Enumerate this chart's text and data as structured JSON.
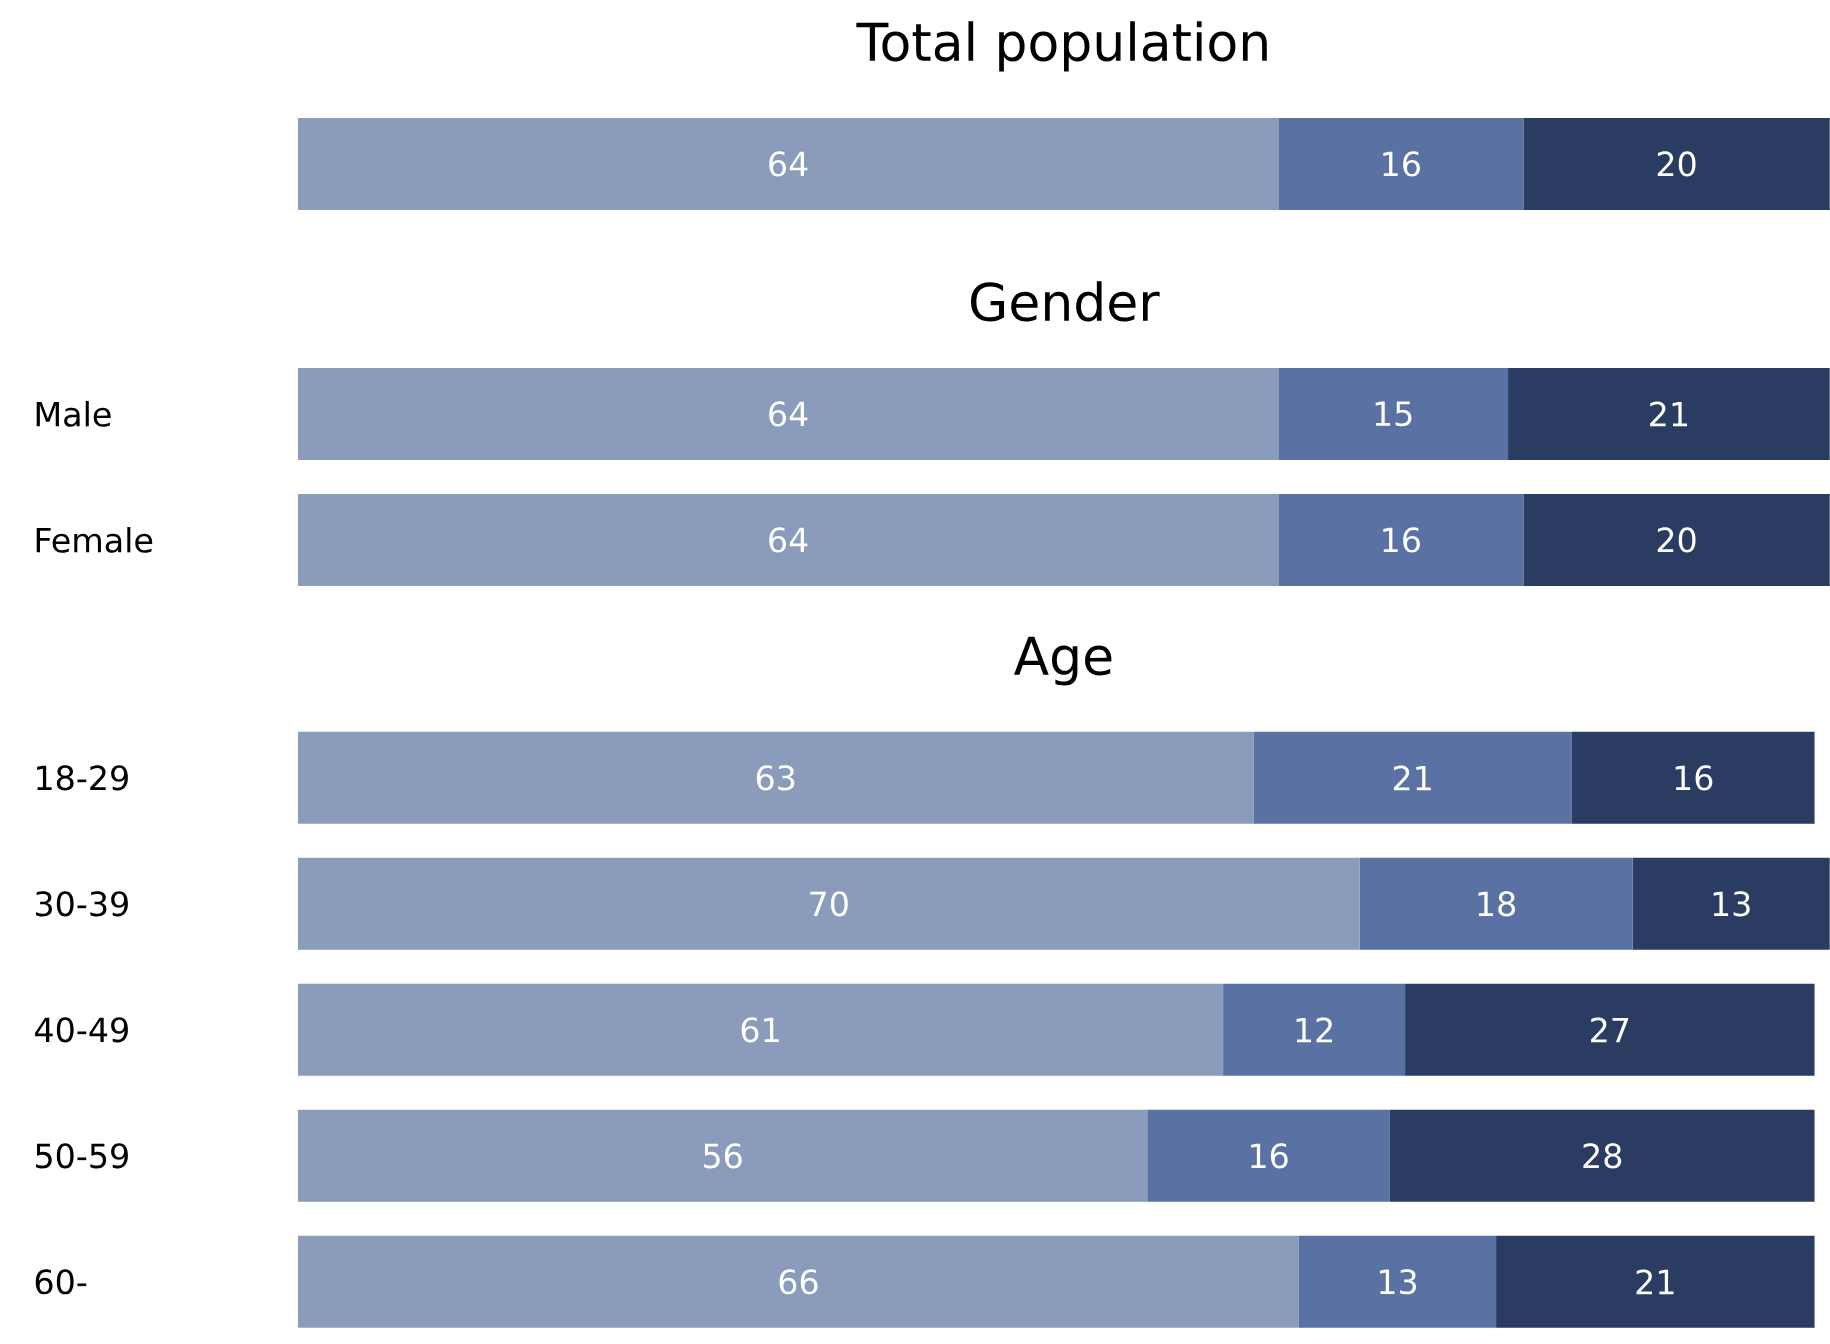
{
  "chart_data": [
    {
      "type": "bar",
      "orientation": "horizontal",
      "stacked": true,
      "data_labels": true,
      "tick_labels": "y",
      "title": "Total population",
      "categories": [
        null
      ],
      "series": [
        {
          "color": "#8a9bbb",
          "values": [
            64
          ]
        },
        {
          "color": "#5a71a3",
          "values": [
            16
          ]
        },
        {
          "color": "#2a3c61",
          "values": [
            20
          ]
        }
      ]
    },
    {
      "type": "bar",
      "orientation": "horizontal",
      "stacked": true,
      "data_labels": true,
      "tick_labels": "y",
      "title": "Gender",
      "categories": [
        "Male",
        "Female"
      ],
      "series": [
        {
          "color": "#8a9bbb",
          "values": [
            64,
            64
          ]
        },
        {
          "color": "#5a71a3",
          "values": [
            15,
            16
          ]
        },
        {
          "color": "#2a3c61",
          "values": [
            21,
            20
          ]
        }
      ]
    },
    {
      "type": "bar",
      "orientation": "horizontal",
      "stacked": true,
      "data_labels": true,
      "tick_labels": "y",
      "title": "Age",
      "categories": [
        "18-29",
        "30-39",
        "40-49",
        "50-59",
        "60-"
      ],
      "series": [
        {
          "color": "#8a9bbb",
          "values": [
            63,
            70,
            61,
            56,
            66
          ]
        },
        {
          "color": "#5a71a3",
          "values": [
            21,
            18,
            12,
            16,
            13
          ]
        },
        {
          "color": "#2a3c61",
          "values": [
            16,
            13,
            27,
            28,
            21
          ]
        }
      ]
    }
  ]
}
